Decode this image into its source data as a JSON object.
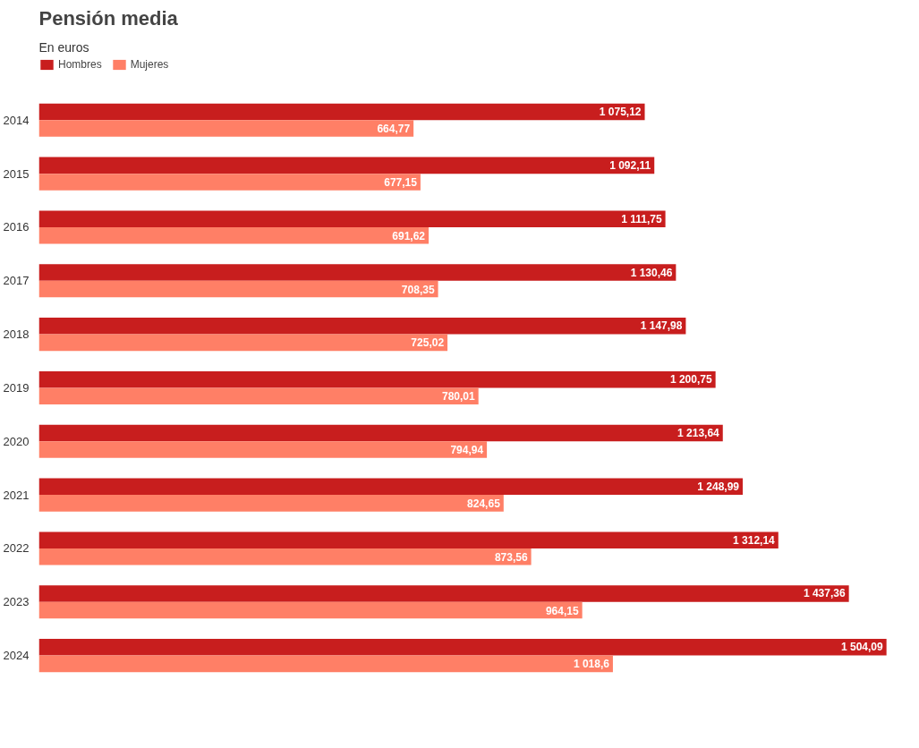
{
  "chart_data": {
    "type": "bar",
    "orientation": "horizontal",
    "title": "Pensión media",
    "subtitle": "En euros",
    "categories": [
      "2014",
      "2015",
      "2016",
      "2017",
      "2018",
      "2019",
      "2020",
      "2021",
      "2022",
      "2023",
      "2024"
    ],
    "series": [
      {
        "name": "Hombres",
        "color": "#c81e1e",
        "values": [
          1075.12,
          1092.11,
          1111.75,
          1130.46,
          1147.98,
          1200.75,
          1213.64,
          1248.99,
          1312.14,
          1437.36,
          1504.09
        ],
        "value_labels": [
          "1 075,12",
          "1 092,11",
          "1 111,75",
          "1 130,46",
          "1 147,98",
          "1 200,75",
          "1 213,64",
          "1 248,99",
          "1 312,14",
          "1 437,36",
          "1 504,09"
        ]
      },
      {
        "name": "Mujeres",
        "color": "#ff7f66",
        "values": [
          664.77,
          677.15,
          691.62,
          708.35,
          725.02,
          780.01,
          794.94,
          824.65,
          873.56,
          964.15,
          1018.6
        ],
        "value_labels": [
          "664,77",
          "677,15",
          "691,62",
          "708,35",
          "725,02",
          "780,01",
          "794,94",
          "824,65",
          "873,56",
          "964,15",
          "1 018,6"
        ]
      }
    ],
    "legend": "top left",
    "grid": false,
    "tick_labels": "y"
  }
}
